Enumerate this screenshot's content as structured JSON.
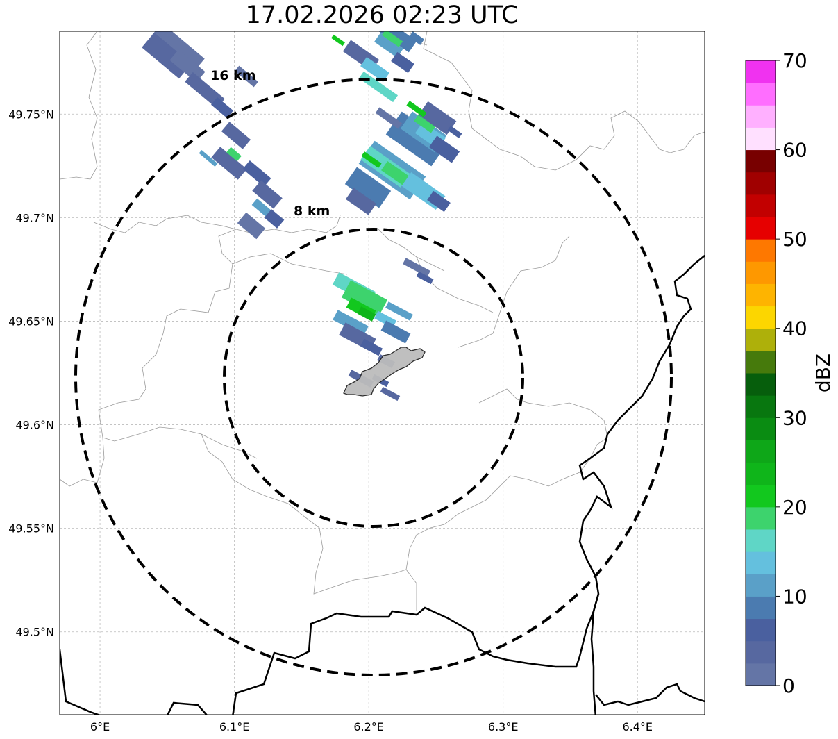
{
  "title": "17.02.2026 02:23 UTC",
  "map": {
    "lon_range": [
      5.97,
      6.45
    ],
    "lat_range": [
      49.46,
      49.79
    ],
    "lon_ticks": [
      {
        "value": 6.0,
        "label": "6°E"
      },
      {
        "value": 6.1,
        "label": "6.1°E"
      },
      {
        "value": 6.2,
        "label": "6.2°E"
      },
      {
        "value": 6.3,
        "label": "6.3°E"
      },
      {
        "value": 6.4,
        "label": "6.4°E"
      }
    ],
    "lat_ticks": [
      {
        "value": 49.75,
        "label": "49.75°N"
      },
      {
        "value": 49.7,
        "label": "49.7°N"
      },
      {
        "value": 49.65,
        "label": "49.65°N"
      },
      {
        "value": 49.6,
        "label": "49.6°N"
      },
      {
        "value": 49.55,
        "label": "49.55°N"
      },
      {
        "value": 49.5,
        "label": "49.5°N"
      }
    ],
    "gridlines": true,
    "range_rings": [
      {
        "label": "8 km",
        "center_lon": 6.203,
        "center_lat": 49.623,
        "radius_km": 8
      },
      {
        "label": "16 km",
        "center_lon": 6.203,
        "center_lat": 49.623,
        "radius_km": 16
      }
    ],
    "city_polygon": "Luxembourg City (gray shaded area)",
    "echo_cells": [
      {
        "lon": 6.06,
        "lat": 49.77,
        "dbz": 2
      },
      {
        "lon": 6.085,
        "lat": 49.755,
        "dbz": 4
      },
      {
        "lon": 6.095,
        "lat": 49.725,
        "dbz": 3
      },
      {
        "lon": 6.1,
        "lat": 49.725,
        "dbz": 18
      },
      {
        "lon": 6.115,
        "lat": 49.71,
        "dbz": 5
      },
      {
        "lon": 6.12,
        "lat": 49.695,
        "dbz": 9
      },
      {
        "lon": 6.205,
        "lat": 49.775,
        "dbz": 12
      },
      {
        "lon": 6.21,
        "lat": 49.77,
        "dbz": 19
      },
      {
        "lon": 6.24,
        "lat": 49.735,
        "dbz": 11
      },
      {
        "lon": 6.23,
        "lat": 49.72,
        "dbz": 16
      },
      {
        "lon": 6.215,
        "lat": 49.73,
        "dbz": 22
      },
      {
        "lon": 6.245,
        "lat": 49.715,
        "dbz": 8
      },
      {
        "lon": 6.2,
        "lat": 49.66,
        "dbz": 19
      },
      {
        "lon": 6.2,
        "lat": 49.65,
        "dbz": 22
      },
      {
        "lon": 6.205,
        "lat": 49.64,
        "dbz": 5
      },
      {
        "lon": 6.21,
        "lat": 49.62,
        "dbz": 4
      },
      {
        "lon": 6.24,
        "lat": 49.675,
        "dbz": 3
      }
    ]
  },
  "colorbar": {
    "label": "dBZ",
    "min": 0,
    "max": 70,
    "step": 2.5,
    "ticks": [
      {
        "value": 0,
        "label": "0"
      },
      {
        "value": 10,
        "label": "10"
      },
      {
        "value": 20,
        "label": "20"
      },
      {
        "value": 30,
        "label": "30"
      },
      {
        "value": 40,
        "label": "40"
      },
      {
        "value": 50,
        "label": "50"
      },
      {
        "value": 60,
        "label": "60"
      },
      {
        "value": 70,
        "label": "70"
      }
    ],
    "colors": [
      "#6475a6",
      "#5768a0",
      "#4a609f",
      "#4b7bb0",
      "#5aa0c8",
      "#64c0de",
      "#5fd6c6",
      "#3dd36d",
      "#12c81e",
      "#0fb51a",
      "#0ea718",
      "#0a8c12",
      "#08770f",
      "#065e0c",
      "#467a0c",
      "#aeb00a",
      "#fcd600",
      "#feb400",
      "#fe9800",
      "#fe7800",
      "#e60000",
      "#c20000",
      "#a00000",
      "#780000",
      "#ffe0ff",
      "#ffb0ff",
      "#ff6eff",
      "#f032f0"
    ]
  }
}
